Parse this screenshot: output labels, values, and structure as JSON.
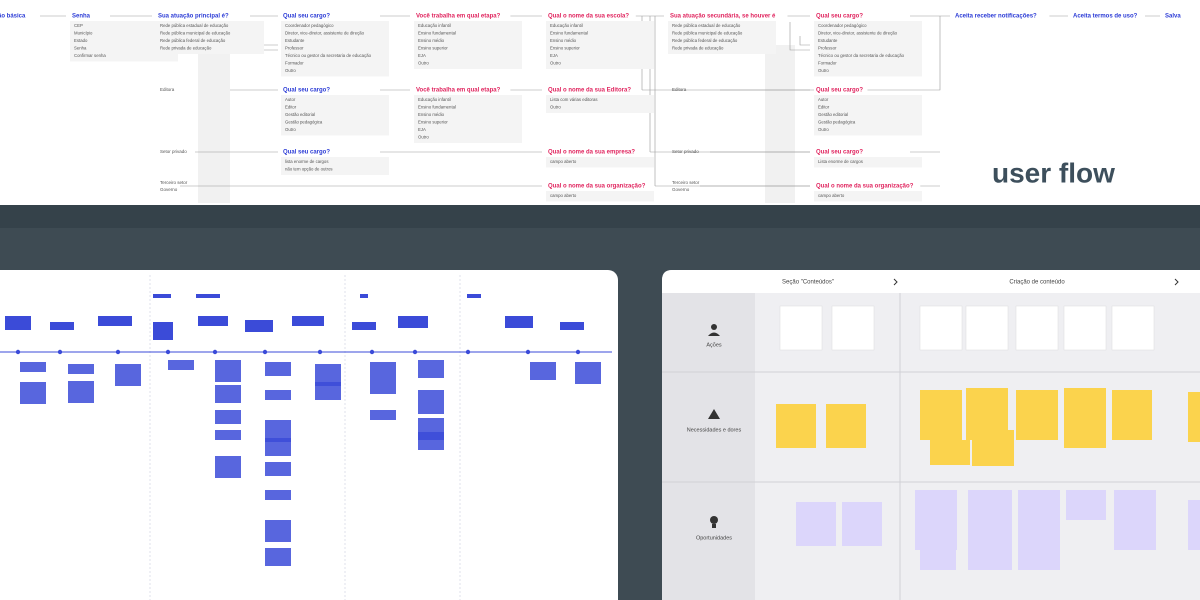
{
  "title": "user flow",
  "flow": {
    "nodes": [
      {
        "title": "ão básica",
        "color": "#2b3bd6",
        "options": []
      },
      {
        "title": "Senha",
        "color": "#2b3bd6",
        "options": [
          "CEP",
          "Município",
          "Estado",
          "Senha",
          "Confirmar senha"
        ]
      },
      {
        "title": "Sua atuação principal é?",
        "color": "#2b3bd6",
        "options": [
          "Rede pública estadual de educação",
          "Rede pública municipal de educação",
          "Rede pública federal de educação",
          "Rede privada de educação"
        ]
      },
      {
        "title": "Qual seu cargo?",
        "color": "#2b3bd6",
        "options": [
          "Coordenador pedagógico",
          "Diretor, vice-diretor, assistente de direção",
          "Estudante",
          "Professor",
          "Técnico ou gestor da secretaria de educação",
          "Formador",
          "Outro"
        ]
      },
      {
        "title": "Você trabalha em qual etapa?",
        "color": "#e0245e",
        "options": [
          "Educação infantil",
          "Ensino fundamental",
          "Ensino médio",
          "Ensino superior",
          "EJA",
          "Outro"
        ]
      },
      {
        "title": "Qual o nome da sua escola?",
        "color": "#e0245e",
        "options": [
          "Educação infantil",
          "Ensino fundamental",
          "Ensino médio",
          "Ensino superior",
          "EJA",
          "Outro"
        ]
      },
      {
        "title": "Sua atuação secundária, se houver é",
        "color": "#e0245e",
        "options": [
          "Rede pública estadual de educação",
          "Rede pública municipal de educação",
          "Rede pública federal de educação",
          "Rede privada de educação"
        ]
      },
      {
        "title": "Qual seu cargo?",
        "color": "#e0245e",
        "options": [
          "Coordenador pedagógico",
          "Diretor, vice-diretor, assistente de direção",
          "Estudante",
          "Professor",
          "Técnico ou gestor da secretaria de educação",
          "Formador",
          "Outro"
        ]
      },
      {
        "title": "Aceita receber notificações?",
        "color": "#2b3bd6",
        "options": []
      },
      {
        "title": "Aceita termos de uso?",
        "color": "#2b3bd6",
        "options": []
      },
      {
        "title": "Salva",
        "color": "#2b3bd6",
        "options": []
      },
      {
        "title": "Qual seu cargo?",
        "color": "#2b3bd6",
        "options": [
          "Autor",
          "Editor",
          "Gestão editorial",
          "Gestão pedagógica",
          "Outro"
        ]
      },
      {
        "title": "Você trabalha em qual etapa?",
        "color": "#e0245e",
        "options": [
          "Educação infantil",
          "Ensino fundamental",
          "Ensino médio",
          "Ensino superior",
          "EJA",
          "Outro"
        ]
      },
      {
        "title": "Qual o nome da sua Editora?",
        "color": "#e0245e",
        "options": [
          "Lista com várias editoras",
          "Outro"
        ]
      },
      {
        "title": "Qual seu cargo?",
        "color": "#e0245e",
        "options": [
          "Autor",
          "Editor",
          "Gestão editorial",
          "Gestão pedagógica",
          "Outro"
        ]
      },
      {
        "title": "Qual seu cargo?",
        "color": "#2b3bd6",
        "options": [
          "lista enorme de cargos",
          "não tem opção de outros"
        ]
      },
      {
        "title": "Qual o nome da sua empresa?",
        "color": "#e0245e",
        "options": [
          "campo aberto"
        ]
      },
      {
        "title": "Qual seu cargo?",
        "color": "#e0245e",
        "options": [
          "Lista enorme de cargos"
        ]
      },
      {
        "title": "Qual o nome da sua organização?",
        "color": "#e0245e",
        "options": [
          "campo aberto"
        ]
      },
      {
        "title": "Qual o nome da sua organização?",
        "color": "#e0245e",
        "options": [
          "campo aberto"
        ]
      }
    ],
    "side_labels": [
      "Editora",
      "Setor privado",
      "Terceiro setor",
      "Governo",
      "Editora",
      "Setor privado",
      "Terceiro setor",
      "Governo"
    ]
  },
  "blueprint": {
    "sections": [
      "Seção \"Conteúdos\"",
      "Criação de conteúdo"
    ],
    "rows": [
      "Ações",
      "Necessidades e dores",
      "Oportunidades"
    ]
  }
}
